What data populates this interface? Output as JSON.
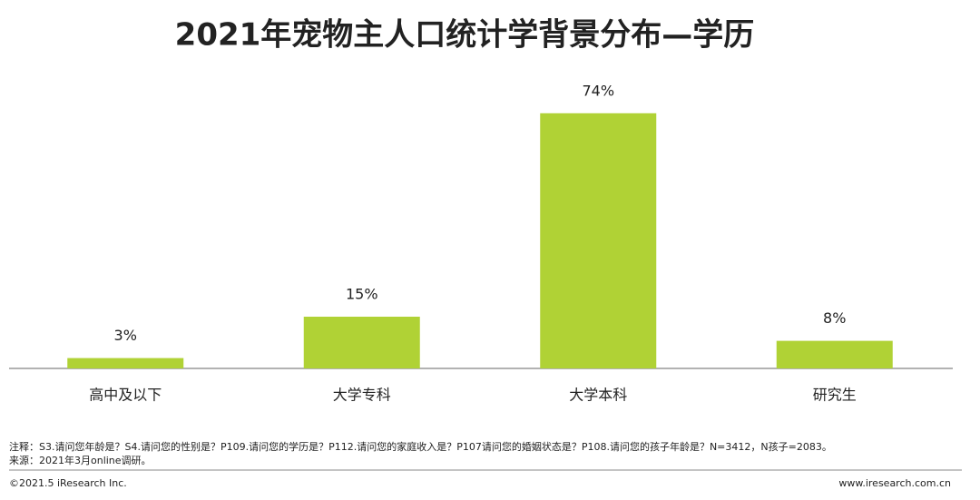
{
  "chart_data": {
    "type": "bar",
    "title": "2021年宠物主人口统计学背景分布—学历",
    "categories": [
      "高中及以下",
      "大学专科",
      "大学本科",
      "研究生"
    ],
    "values": [
      3,
      15,
      74,
      8
    ],
    "value_labels": [
      "3%",
      "15%",
      "74%",
      "8%"
    ],
    "color": "#b0d235"
  },
  "notes": {
    "note": "注释：S3.请问您年龄是？S4.请问您的性别是？P109.请问您的学历是？P112.请问您的家庭收入是？P107请问您的婚姻状态是？P108.请问您的孩子年龄是？N=3412，N孩子=2083。",
    "source": "来源：2021年3月online调研。"
  },
  "footer": {
    "copyright": "©2021.5 iResearch Inc.",
    "website": "www.iresearch.com.cn"
  }
}
